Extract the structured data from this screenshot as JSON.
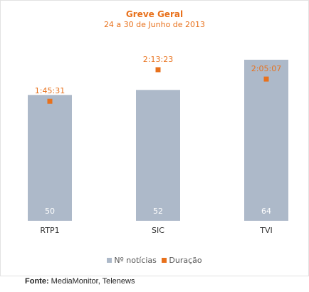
{
  "chart_data": {
    "type": "bar",
    "title": "Greve Geral",
    "subtitle": "24 a 30 de Junho de 2013",
    "categories": [
      "RTP1",
      "SIC",
      "TVI"
    ],
    "series": [
      {
        "name": "Nº notícias",
        "type": "bar",
        "values": [
          50,
          52,
          64
        ],
        "labels": [
          "50",
          "52",
          "64"
        ]
      },
      {
        "name": "Duração",
        "type": "marker",
        "values": [
          "1:45:31",
          "2:13:23",
          "2:05:07"
        ],
        "values_seconds": [
          6331,
          8003,
          7507
        ],
        "labels": [
          "1:45:31",
          "2:13:23",
          "2:05:07"
        ]
      }
    ],
    "ylim_bars": [
      0,
      75
    ],
    "ylim_duration_seconds": [
      0,
      10000
    ],
    "legend_position": "bottom",
    "grid": false
  },
  "colors": {
    "bar": "#adb9c9",
    "marker": "#e8711c",
    "title": "#e8711c"
  },
  "source": {
    "label": "Fonte:",
    "text": "MediaMonitor, Telenews"
  }
}
